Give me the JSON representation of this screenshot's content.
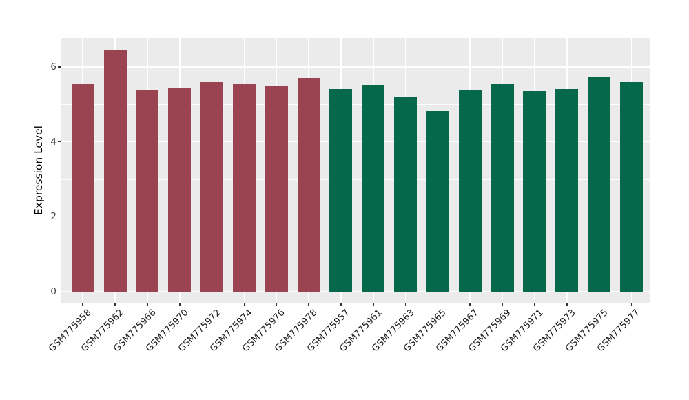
{
  "figure": {
    "background_color": "#ffffff",
    "panel_background_color": "#EBEBEB",
    "grid_color": "#ffffff",
    "tick_mark_color": "#333333",
    "y_tick_label_color": "#404040",
    "x_tick_label_color": "#1a1a1a"
  },
  "chart_data": {
    "type": "bar",
    "title": "",
    "xlabel": "",
    "ylabel": "Expression Level",
    "ylim": [
      0,
      6.77
    ],
    "yticks": [
      0,
      2,
      4,
      6
    ],
    "yticks_minor": [
      1,
      3,
      5
    ],
    "grid": true,
    "legend": false,
    "x_tick_rotation_deg": 45,
    "group_colors": {
      "group1": "#9A4351",
      "group2": "#06684A"
    },
    "bars": [
      {
        "label": "GSM775958",
        "value": 5.53,
        "group": "group1"
      },
      {
        "label": "GSM775962",
        "value": 6.43,
        "group": "group1"
      },
      {
        "label": "GSM775966",
        "value": 5.37,
        "group": "group1"
      },
      {
        "label": "GSM775970",
        "value": 5.45,
        "group": "group1"
      },
      {
        "label": "GSM775972",
        "value": 5.59,
        "group": "group1"
      },
      {
        "label": "GSM775974",
        "value": 5.53,
        "group": "group1"
      },
      {
        "label": "GSM775976",
        "value": 5.5,
        "group": "group1"
      },
      {
        "label": "GSM775978",
        "value": 5.71,
        "group": "group1"
      },
      {
        "label": "GSM775957",
        "value": 5.4,
        "group": "group2"
      },
      {
        "label": "GSM775961",
        "value": 5.51,
        "group": "group2"
      },
      {
        "label": "GSM775963",
        "value": 5.19,
        "group": "group2"
      },
      {
        "label": "GSM775965",
        "value": 4.82,
        "group": "group2"
      },
      {
        "label": "GSM775967",
        "value": 5.39,
        "group": "group2"
      },
      {
        "label": "GSM775969",
        "value": 5.54,
        "group": "group2"
      },
      {
        "label": "GSM775971",
        "value": 5.36,
        "group": "group2"
      },
      {
        "label": "GSM775973",
        "value": 5.4,
        "group": "group2"
      },
      {
        "label": "GSM775975",
        "value": 5.74,
        "group": "group2"
      },
      {
        "label": "GSM775977",
        "value": 5.59,
        "group": "group2"
      }
    ]
  }
}
